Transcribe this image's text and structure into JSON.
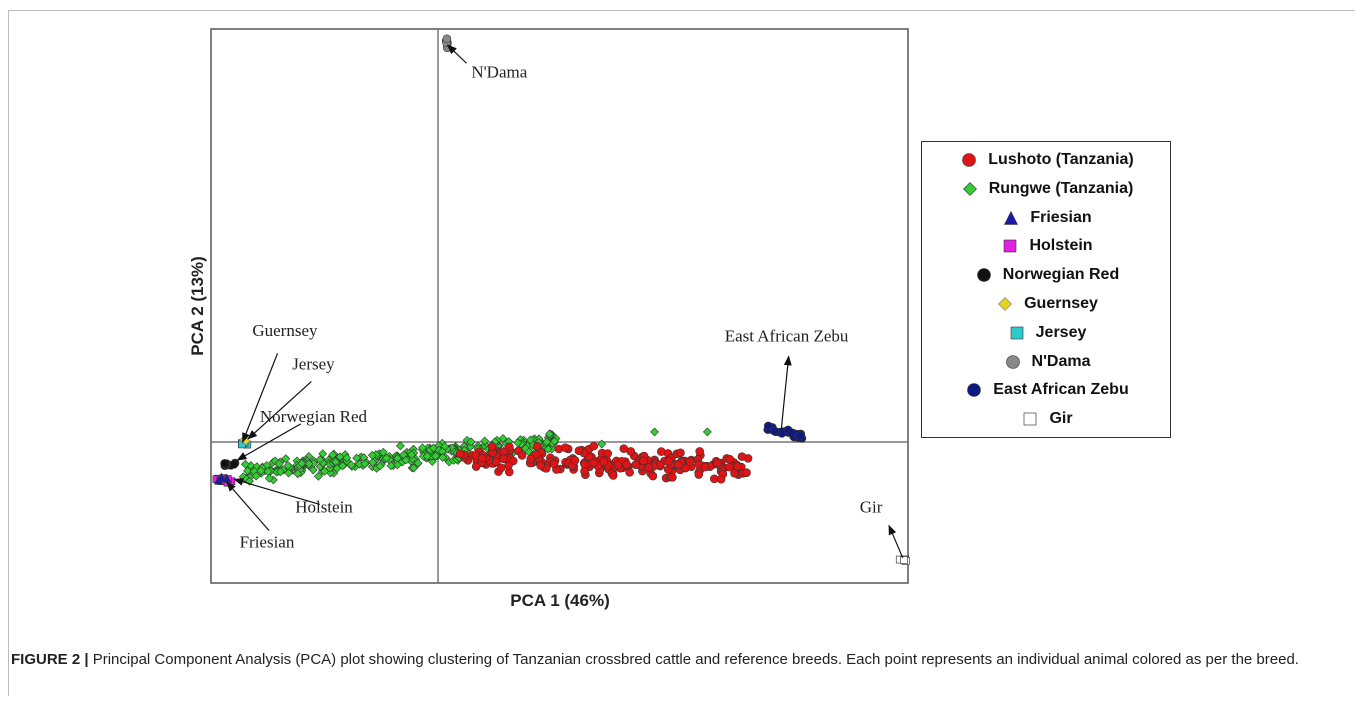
{
  "caption": {
    "label": "FIGURE 2 |",
    "text": " Principal Component Analysis (PCA) plot showing clustering of Tanzanian crossbred cattle and reference breeds. Each point represents an individual animal colored as per the breed."
  },
  "chart_data": {
    "type": "scatter",
    "title": "",
    "xlabel": "PCA 1 (46%)",
    "ylabel": "PCA 2 (13%)",
    "xlim": [
      -0.215,
      0.445
    ],
    "ylim": [
      -0.14,
      0.41
    ],
    "axis_ticks": "none",
    "reference_lines": {
      "x": 0,
      "y": 0
    },
    "grid": false,
    "legend_position": "right, outside plot",
    "series": [
      {
        "name": "Lushoto (Tanzania)",
        "marker": "circle",
        "color": "#e01414",
        "cluster": {
          "x_range": [
            0.02,
            0.295
          ],
          "y_center": -0.02,
          "y_spread": 0.018,
          "trend": -0.01,
          "count": 220
        }
      },
      {
        "name": "Rungwe (Tanzania)",
        "marker": "diamond",
        "color": "#33cc33",
        "cluster": {
          "x_range": [
            -0.185,
            0.115
          ],
          "y_center": -0.015,
          "y_spread": 0.014,
          "trend": 0.03,
          "count": 330
        },
        "points": [
          [
            0.155,
            -0.002
          ],
          [
            0.205,
            0.01
          ],
          [
            0.255,
            0.01
          ]
        ]
      },
      {
        "name": "Friesian",
        "marker": "triangle",
        "color": "#1a1aaa",
        "points": [
          [
            -0.208,
            -0.038
          ],
          [
            -0.205,
            -0.035
          ],
          [
            -0.2,
            -0.036
          ]
        ]
      },
      {
        "name": "Holstein",
        "marker": "square",
        "color": "#e020e0",
        "cluster": {
          "x_range": [
            -0.21,
            -0.195
          ],
          "y_center": -0.038,
          "y_spread": 0.004,
          "count": 10
        }
      },
      {
        "name": "Norwegian Red",
        "marker": "circle",
        "color": "#111111",
        "cluster": {
          "x_range": [
            -0.203,
            -0.19
          ],
          "y_center": -0.023,
          "y_spread": 0.004,
          "count": 10
        }
      },
      {
        "name": "Guernsey",
        "marker": "diamond",
        "color": "#e6d520",
        "points": [
          [
            -0.184,
            0.002
          ],
          [
            -0.182,
            0.001
          ]
        ]
      },
      {
        "name": "Jersey",
        "marker": "square",
        "color": "#2ec9c9",
        "cluster": {
          "x_range": [
            -0.188,
            -0.179
          ],
          "y_center": -0.002,
          "y_spread": 0.003,
          "count": 5
        }
      },
      {
        "name": "N'Dama",
        "marker": "circle",
        "color": "#888888",
        "cluster": {
          "x_range": [
            0.006,
            0.009
          ],
          "y_center": 0.395,
          "y_spread": 0.007,
          "count": 6
        }
      },
      {
        "name": "East African Zebu",
        "marker": "circle",
        "color": "#0f1a80",
        "cluster": {
          "x_range": [
            0.31,
            0.345
          ],
          "y_center": 0.01,
          "y_spread": 0.005,
          "trend": -0.01,
          "count": 30
        }
      },
      {
        "name": "Gir",
        "marker": "square",
        "color": "#ffffff",
        "cluster": {
          "x_range": [
            0.437,
            0.444
          ],
          "y_center": -0.118,
          "y_spread": 0.003,
          "count": 5
        }
      }
    ],
    "annotations": [
      {
        "text": "N'Dama",
        "x": 0.058,
        "y": 0.362,
        "arrow_from": [
          0.027,
          0.376
        ],
        "arrow_to": [
          0.009,
          0.394
        ]
      },
      {
        "text": "Guernsey",
        "x": -0.145,
        "y": 0.105,
        "arrow_from": [
          -0.152,
          0.088
        ],
        "arrow_to": [
          -0.185,
          0.0
        ]
      },
      {
        "text": "Jersey",
        "x": -0.118,
        "y": 0.072,
        "arrow_from": [
          -0.12,
          0.06
        ],
        "arrow_to": [
          -0.18,
          0.003
        ]
      },
      {
        "text": "Norwegian Red",
        "x": -0.118,
        "y": 0.02,
        "arrow_from": [
          -0.13,
          0.018
        ],
        "arrow_to": [
          -0.19,
          -0.018
        ]
      },
      {
        "text": "Holstein",
        "x": -0.108,
        "y": -0.07,
        "arrow_from": [
          -0.112,
          -0.062
        ],
        "arrow_to": [
          -0.193,
          -0.037
        ]
      },
      {
        "text": "Friesian",
        "x": -0.162,
        "y": -0.105,
        "arrow_from": [
          -0.16,
          -0.088
        ],
        "arrow_to": [
          -0.2,
          -0.04
        ]
      },
      {
        "text": "East African Zebu",
        "x": 0.33,
        "y": 0.1,
        "arrow_from": [
          0.325,
          0.0125
        ],
        "arrow_to": [
          0.332,
          0.085
        ]
      },
      {
        "text": "Gir",
        "x": 0.41,
        "y": -0.07,
        "arrow_from": [
          0.44,
          -0.115
        ],
        "arrow_to": [
          0.427,
          -0.083
        ]
      }
    ]
  }
}
